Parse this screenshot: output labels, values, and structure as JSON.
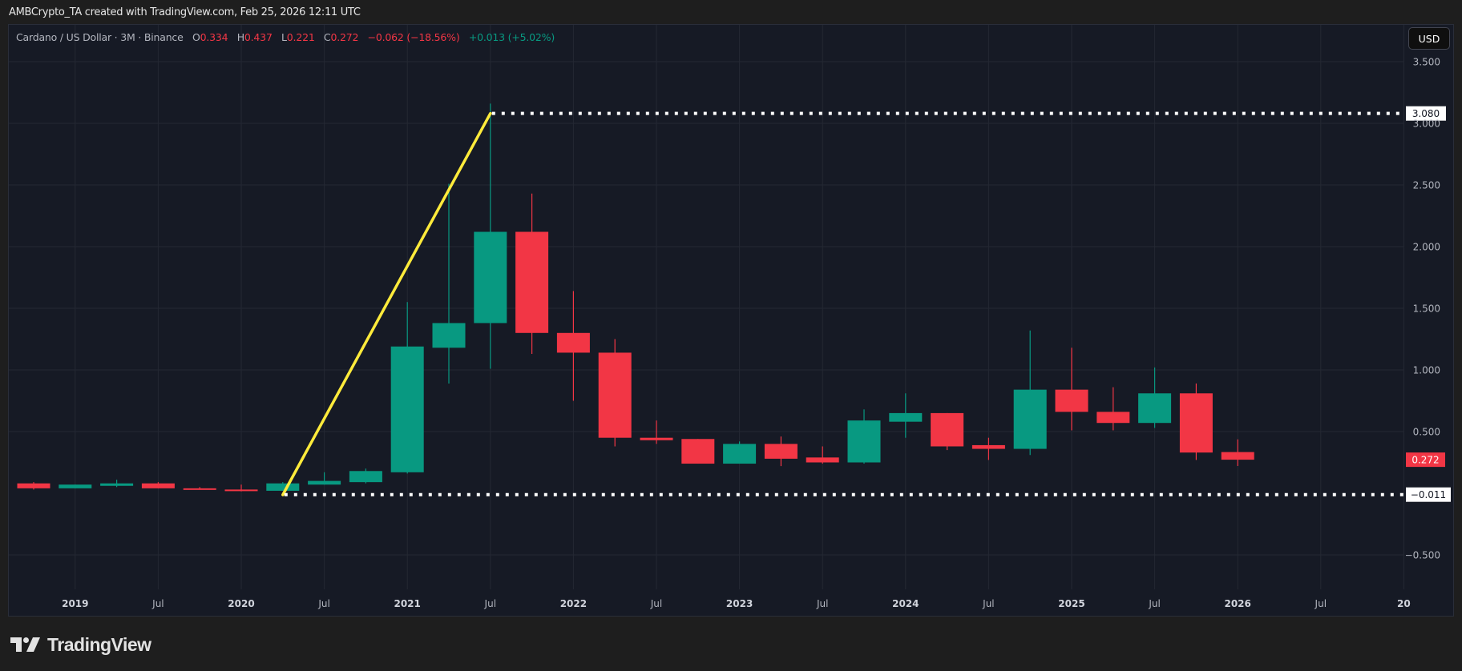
{
  "caption": "AMBCrypto_TA created with TradingView.com, Feb 25, 2026 12:11 UTC",
  "legend": {
    "symbol": "Cardano / US Dollar · 3M · Binance",
    "o_label": "O",
    "o_value": "0.334",
    "h_label": "H",
    "h_value": "0.437",
    "l_label": "L",
    "l_value": "0.221",
    "c_label": "C",
    "c_value": "0.272",
    "change": "−0.062 (−18.56%)",
    "secondary_change": "+0.013 (+5.02%)"
  },
  "currency_button": "USD",
  "logo": {
    "text": "TradingView",
    "icon": "tradingview-logo-icon"
  },
  "colors": {
    "up": "#089981",
    "down": "#f23645",
    "trendline": "#ffeb3b",
    "level_line": "#ffffff",
    "grid": "#242833",
    "pane_bg": "#161a25",
    "outer_bg": "#1e1e1e"
  },
  "chart_data": {
    "type": "candlestick",
    "title": "Cardano / US Dollar · 3M · Binance",
    "interval": "3M",
    "ylabel": "USD",
    "ylim": [
      -0.75,
      3.75
    ],
    "y_ticks": [
      "3.500",
      "3.000",
      "2.500",
      "2.000",
      "1.500",
      "1.000",
      "0.500",
      "-0.500"
    ],
    "x_ticks": [
      "2019",
      "Jul",
      "2020",
      "Jul",
      "2021",
      "Jul",
      "2022",
      "Jul",
      "2023",
      "Jul",
      "2024",
      "Jul",
      "2025",
      "Jul",
      "2026",
      "Jul",
      "20"
    ],
    "grid": true,
    "candles": [
      {
        "period": "Q4 2018",
        "o": 0.08,
        "h": 0.09,
        "l": 0.03,
        "c": 0.04
      },
      {
        "period": "Q1 2019",
        "o": 0.04,
        "h": 0.07,
        "l": 0.04,
        "c": 0.07
      },
      {
        "period": "Q2 2019",
        "o": 0.06,
        "h": 0.11,
        "l": 0.05,
        "c": 0.08
      },
      {
        "period": "Q3 2019",
        "o": 0.08,
        "h": 0.09,
        "l": 0.04,
        "c": 0.04
      },
      {
        "period": "Q4 2019",
        "o": 0.04,
        "h": 0.05,
        "l": 0.03,
        "c": 0.03
      },
      {
        "period": "Q1 2020",
        "o": 0.03,
        "h": 0.07,
        "l": 0.015,
        "c": 0.02
      },
      {
        "period": "Q2 2020",
        "o": 0.02,
        "h": 0.09,
        "l": 0.02,
        "c": 0.08
      },
      {
        "period": "Q3 2020",
        "o": 0.07,
        "h": 0.17,
        "l": 0.07,
        "c": 0.1
      },
      {
        "period": "Q4 2020",
        "o": 0.09,
        "h": 0.2,
        "l": 0.08,
        "c": 0.18
      },
      {
        "period": "Q1 2021",
        "o": 0.17,
        "h": 1.55,
        "l": 0.16,
        "c": 1.19
      },
      {
        "period": "Q2 2021",
        "o": 1.18,
        "h": 2.51,
        "l": 0.89,
        "c": 1.38
      },
      {
        "period": "Q3 2021",
        "o": 1.38,
        "h": 3.16,
        "l": 1.01,
        "c": 2.12
      },
      {
        "period": "Q4 2021",
        "o": 2.12,
        "h": 2.43,
        "l": 1.13,
        "c": 1.3
      },
      {
        "period": "Q1 2022",
        "o": 1.3,
        "h": 1.64,
        "l": 0.75,
        "c": 1.14
      },
      {
        "period": "Q2 2022",
        "o": 1.14,
        "h": 1.25,
        "l": 0.38,
        "c": 0.45
      },
      {
        "period": "Q3 2022",
        "o": 0.45,
        "h": 0.59,
        "l": 0.4,
        "c": 0.43
      },
      {
        "period": "Q4 2022",
        "o": 0.44,
        "h": 0.44,
        "l": 0.24,
        "c": 0.24
      },
      {
        "period": "Q1 2023",
        "o": 0.24,
        "h": 0.42,
        "l": 0.24,
        "c": 0.4
      },
      {
        "period": "Q2 2023",
        "o": 0.4,
        "h": 0.46,
        "l": 0.22,
        "c": 0.28
      },
      {
        "period": "Q3 2023",
        "o": 0.29,
        "h": 0.38,
        "l": 0.24,
        "c": 0.25
      },
      {
        "period": "Q4 2023",
        "o": 0.25,
        "h": 0.68,
        "l": 0.24,
        "c": 0.59
      },
      {
        "period": "Q1 2024",
        "o": 0.58,
        "h": 0.81,
        "l": 0.45,
        "c": 0.65
      },
      {
        "period": "Q2 2024",
        "o": 0.65,
        "h": 0.65,
        "l": 0.35,
        "c": 0.38
      },
      {
        "period": "Q3 2024",
        "o": 0.39,
        "h": 0.45,
        "l": 0.27,
        "c": 0.36
      },
      {
        "period": "Q4 2024",
        "o": 0.36,
        "h": 1.32,
        "l": 0.31,
        "c": 0.84
      },
      {
        "period": "Q1 2025",
        "o": 0.84,
        "h": 1.18,
        "l": 0.51,
        "c": 0.66
      },
      {
        "period": "Q2 2025",
        "o": 0.66,
        "h": 0.86,
        "l": 0.51,
        "c": 0.57
      },
      {
        "period": "Q3 2025",
        "o": 0.57,
        "h": 1.02,
        "l": 0.53,
        "c": 0.81
      },
      {
        "period": "Q4 2025",
        "o": 0.81,
        "h": 0.89,
        "l": 0.27,
        "c": 0.33
      },
      {
        "period": "Q1 2026",
        "o": 0.334,
        "h": 0.437,
        "l": 0.221,
        "c": 0.272
      }
    ],
    "annotations": [
      {
        "type": "trendline",
        "from": {
          "period": "Q2 2020",
          "price": -0.011
        },
        "to": {
          "period": "Q3 2021",
          "price": 3.08
        },
        "color": "#ffeb3b"
      },
      {
        "type": "horizontal_ray",
        "price": 3.08,
        "label": "3.080",
        "from_period": "Q3 2021",
        "style": "dotted"
      },
      {
        "type": "horizontal_ray",
        "price": -0.011,
        "label": "−0.011",
        "from_period": "Q2 2020",
        "style": "dotted"
      }
    ],
    "last_price": {
      "value": 0.272,
      "label": "0.272",
      "color": "#f23645"
    }
  }
}
